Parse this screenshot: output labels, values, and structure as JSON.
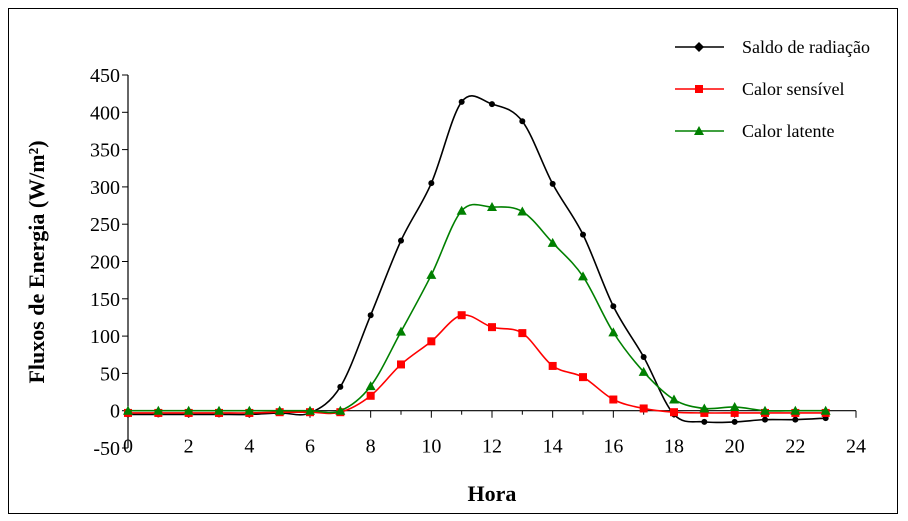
{
  "chart_data": {
    "type": "line",
    "title": "",
    "xlabel": "Hora",
    "ylabel": "Fluxos de Energia (W/m²)",
    "xlim": [
      0,
      24
    ],
    "ylim": [
      -50,
      450
    ],
    "x_ticks": [
      "0",
      "2",
      "4",
      "6",
      "8",
      "10",
      "12",
      "14",
      "16",
      "18",
      "20",
      "22",
      "24"
    ],
    "y_ticks": [
      "-50",
      "0",
      "50",
      "100",
      "150",
      "200",
      "250",
      "300",
      "350",
      "400",
      "450"
    ],
    "grid": false,
    "legend_position": "top-right",
    "x": [
      0,
      1,
      2,
      3,
      4,
      5,
      6,
      7,
      8,
      9,
      10,
      11,
      12,
      13,
      14,
      15,
      16,
      17,
      18,
      19,
      20,
      21,
      22,
      23
    ],
    "series": [
      {
        "name": "Saldo de radiação",
        "color": "#000000",
        "marker": "diamond",
        "values": [
          -5,
          -5,
          -5,
          -5,
          -5,
          -3,
          -3,
          32,
          128,
          228,
          305,
          414,
          411,
          388,
          304,
          236,
          140,
          72,
          -5,
          -15,
          -15,
          -12,
          -12,
          -10
        ]
      },
      {
        "name": "Calor sensível",
        "color": "#ff0000",
        "marker": "square",
        "values": [
          -3,
          -3,
          -3,
          -3,
          -3,
          -2,
          -2,
          -2,
          20,
          62,
          93,
          128,
          112,
          104,
          60,
          45,
          15,
          3,
          -2,
          -3,
          -3,
          -3,
          -3,
          -3
        ]
      },
      {
        "name": "Calor latente",
        "color": "#008000",
        "marker": "triangle",
        "values": [
          0,
          0,
          0,
          0,
          0,
          0,
          0,
          0,
          33,
          106,
          182,
          268,
          273,
          267,
          225,
          180,
          105,
          52,
          15,
          3,
          5,
          0,
          0,
          0
        ]
      }
    ]
  }
}
